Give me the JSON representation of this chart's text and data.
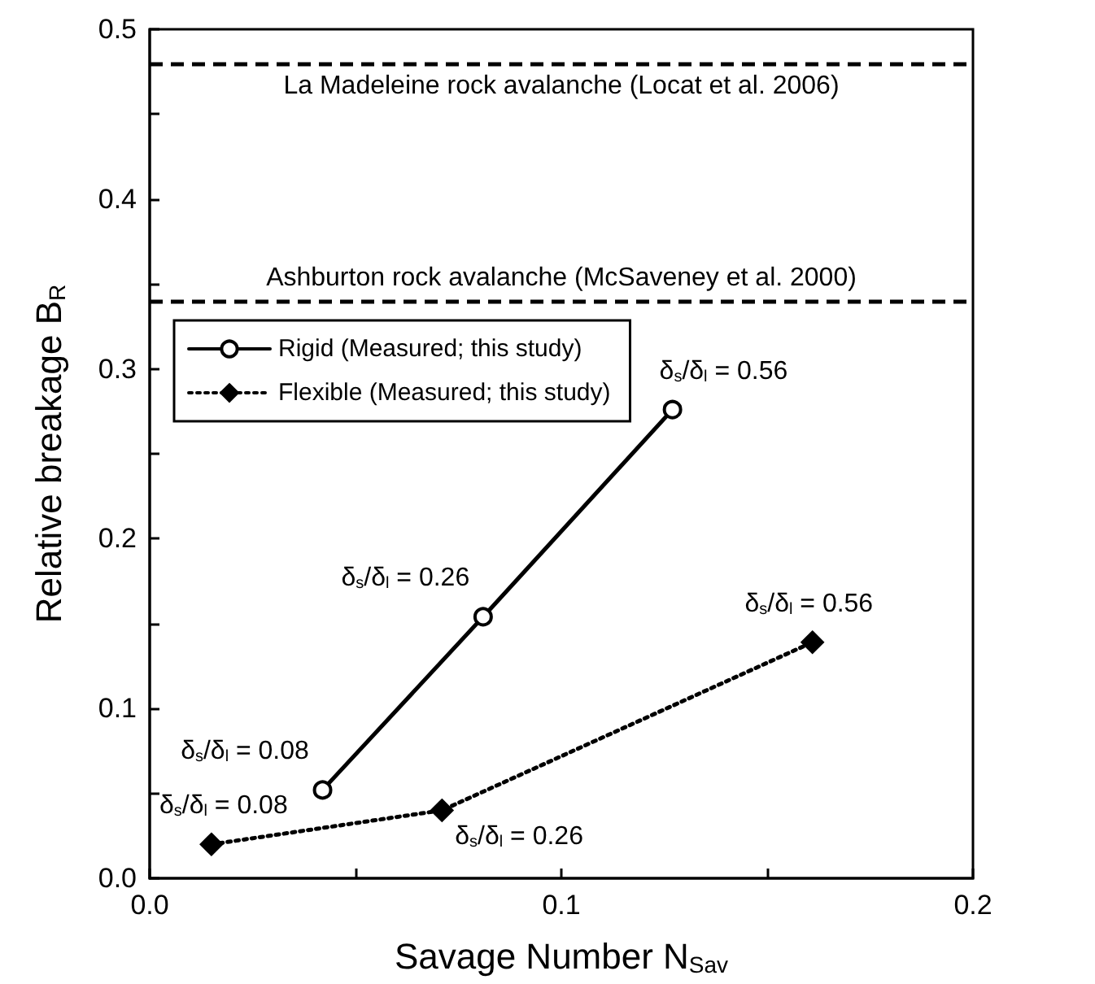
{
  "chart_data": {
    "type": "line",
    "xlabel": "Savage Number N$_{Sav}$",
    "ylabel": "Relative breakage B$_{R}$",
    "xlim": [
      0,
      0.2
    ],
    "ylim": [
      0,
      0.5
    ],
    "xticks": [
      {
        "value": 0,
        "label": "0.0"
      },
      {
        "value": 0.05,
        "label": null
      },
      {
        "value": 0.1,
        "label": "0.1"
      },
      {
        "value": 0.15,
        "label": null
      },
      {
        "value": 0.2,
        "label": "0.2"
      }
    ],
    "yticks": [
      {
        "value": 0,
        "label": "0.0"
      },
      {
        "value": 0.05,
        "label": null
      },
      {
        "value": 0.1,
        "label": "0.1"
      },
      {
        "value": 0.15,
        "label": null
      },
      {
        "value": 0.2,
        "label": "0.2"
      },
      {
        "value": 0.25,
        "label": null
      },
      {
        "value": 0.3,
        "label": "0.3"
      },
      {
        "value": 0.35,
        "label": null
      },
      {
        "value": 0.4,
        "label": "0.4"
      },
      {
        "value": 0.45,
        "label": null
      },
      {
        "value": 0.5,
        "label": "0.5"
      }
    ],
    "series": [
      {
        "name": "Rigid (Measured; this study)",
        "color": "#000000",
        "x": [
          0.042,
          0.081,
          0.127
        ],
        "values": [
          0.052,
          0.154,
          0.276
        ],
        "marker": "circle",
        "line_style": "solid"
      },
      {
        "name": "Flexible (Measured; this study)",
        "color": "#000000",
        "x": [
          0.015,
          0.071,
          0.161
        ],
        "values": [
          0.02,
          0.04,
          0.139
        ],
        "marker": "diamond",
        "line_style": "dotted"
      }
    ],
    "ref_lines": [
      {
        "axis": "y",
        "value": 0.48,
        "label": "La Madeleine rock avalanche (Locat et al. 2006)",
        "color": "#000000",
        "line_style": "dashed"
      },
      {
        "axis": "y",
        "value": 0.34,
        "label": "Ashburton rock avalanche (McSaveney et al. 2000)",
        "color": "#000000",
        "line_style": "dashed"
      }
    ],
    "annotations": [
      {
        "text": "δ$_{s}$/δ$_{l}$ = 0.08",
        "x": 0.042,
        "y": 0.052
      },
      {
        "text": "δ$_{s}$/δ$_{l}$ = 0.26",
        "x": 0.081,
        "y": 0.154
      },
      {
        "text": "δ$_{s}$/δ$_{l}$ = 0.56",
        "x": 0.127,
        "y": 0.276
      },
      {
        "text": "δ$_{s}$/δ$_{l}$ = 0.08",
        "x": 0.015,
        "y": 0.02
      },
      {
        "text": "δ$_{s}$/δ$_{l}$ = 0.26",
        "x": 0.071,
        "y": 0.04
      },
      {
        "text": "δ$_{s}$/δ$_{l}$ = 0.56",
        "x": 0.161,
        "y": 0.139
      }
    ],
    "legend": "top left",
    "grid": false
  }
}
